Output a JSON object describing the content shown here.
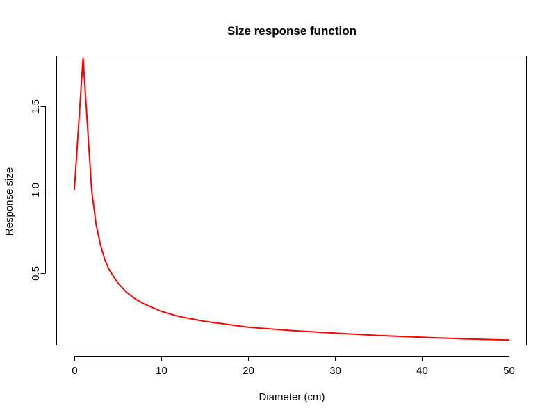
{
  "chart_data": {
    "type": "line",
    "title": "Size response function",
    "xlabel": "Diameter (cm)",
    "ylabel": "Response size",
    "xlim": [
      -2,
      52
    ],
    "ylim": [
      0.07,
      1.8
    ],
    "x_ticks": [
      0,
      10,
      20,
      30,
      40,
      50
    ],
    "x_tick_labels": [
      "0",
      "10",
      "20",
      "30",
      "40",
      "50"
    ],
    "y_ticks": [
      0.5,
      1.0,
      1.5
    ],
    "y_tick_labels": [
      "0.5",
      "1.0",
      "1.5"
    ],
    "grid": false,
    "legend": "none",
    "series": [
      {
        "color": "#ff0000",
        "x": [
          0,
          1,
          2,
          2.5,
          3,
          3.5,
          4,
          5,
          6,
          7,
          8,
          10,
          12,
          15,
          20,
          25,
          30,
          35,
          40,
          45,
          50
        ],
        "values": [
          1.0,
          1.79,
          0.99,
          0.79,
          0.67,
          0.58,
          0.52,
          0.44,
          0.385,
          0.345,
          0.315,
          0.27,
          0.24,
          0.21,
          0.175,
          0.155,
          0.14,
          0.125,
          0.115,
          0.105,
          0.098
        ]
      }
    ]
  }
}
